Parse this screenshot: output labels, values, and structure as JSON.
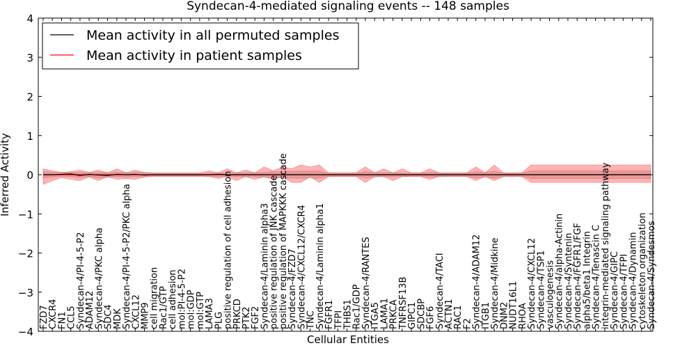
{
  "chart_data": {
    "type": "line",
    "title": "Syndecan-4-mediated signaling events -- 148 samples",
    "xlabel": "Cellular Entities",
    "ylabel": "Inferred Activity",
    "ylim": [
      -4,
      4
    ],
    "yticks": [
      "−4",
      "−3",
      "−2",
      "−1",
      "0",
      "1",
      "2",
      "3",
      "4"
    ],
    "legend_position": "top-left",
    "categories": [
      "FZD7",
      "CXCR4",
      "FN1",
      "CCL5",
      "Syndecan-4/PI-4-5-P2",
      "ADAM12",
      "Syndecan-4/PKC alpha",
      "SDC4",
      "MDK",
      "Syndecan-4/PI-4-5-P2/PKC alpha",
      "CXCL12",
      "MMP9",
      "cell migration",
      "Rac1/GTP",
      "cell adhesion",
      "mol:PI-4-5-P2",
      "mol:GDP",
      "mol:GTP",
      "LAMA3",
      "PLG",
      "positive regulation of cell adhesion",
      "PRKCD",
      "PTK2",
      "FGF2",
      "Syndecan-4/Laminin alpha3",
      "positive regulation of JNK cascade",
      "positive regulation of MAPKKK cascade",
      "Syndecan-4/FZD7",
      "Syndecan-4/CXCL12/CXCR4",
      "TNC",
      "Syndecan-4/Laminin alpha1",
      "FGFR1",
      "TFPI",
      "THBS1",
      "Rac1/GDP",
      "Syndecan-4/RANTES",
      "ITGA5",
      "LAMA1",
      "PRKCA",
      "TNFRSF13B",
      "GIPC1",
      "SDCBP",
      "FGF6",
      "Syndecan-4/TACI",
      "ACTN1",
      "RAC1",
      "F2",
      "Syndecan-4/ADAM12",
      "ITGB1",
      "Syndecan-4/Midkine",
      "DNM2",
      "NUDT16L1",
      "RHOA",
      "Syndecan-4/CXCL12",
      "Syndecan-4/TSP1",
      "vasculogenesis",
      "Syndecan-4/alpha-Actinin",
      "Syndecan-4/Syntenin",
      "Syndecan-4/FGFR1/FGF",
      "alpha5/beta1 Integrin",
      "Syndecan-4/Tenascin C",
      "integrin-mediated signaling pathway",
      "Syndecan-4/GIPC",
      "Syndecan-4/TFPI",
      "Syndecan-4/Dynamin",
      "cytoskeleton organization",
      "Syndecan-4/Syndesmos"
    ],
    "series": [
      {
        "name": "Mean activity in all permuted samples",
        "color": "#000000",
        "values": [
          0.0,
          0.0,
          0.01,
          0.02,
          -0.02,
          0.01,
          -0.01,
          -0.02,
          0.01,
          0.0,
          0.01,
          -0.01,
          0.0,
          0.0,
          0.0,
          0.0,
          0.0,
          0.0,
          0.0,
          0.01,
          0.0,
          0.0,
          0.0,
          0.0,
          0.0,
          0.0,
          0.0,
          0.0,
          0.0,
          0.0,
          0.0,
          0.0,
          0.0,
          0.0,
          0.0,
          0.0,
          0.0,
          0.0,
          0.0,
          0.0,
          0.0,
          0.0,
          0.0,
          0.0,
          0.0,
          0.0,
          0.0,
          0.0,
          0.0,
          0.0,
          0.0,
          0.0,
          0.0,
          0.0,
          0.0,
          0.0,
          0.0,
          0.0,
          0.0,
          0.0,
          0.0,
          0.0,
          0.0,
          0.0,
          0.0,
          0.0,
          0.0
        ],
        "lower": [
          -0.08,
          -0.06,
          -0.04,
          -0.05,
          -0.07,
          -0.05,
          -0.08,
          -0.07,
          -0.05,
          -0.06,
          -0.05,
          -0.06,
          -0.03,
          -0.03,
          -0.03,
          -0.03,
          -0.03,
          -0.03,
          -0.04,
          -0.05,
          -0.04,
          -0.05,
          -0.06,
          -0.05,
          -0.07,
          -0.08,
          -0.08,
          -0.09,
          -0.09,
          -0.09,
          -0.09,
          -0.04,
          -0.04,
          -0.04,
          -0.04,
          -0.08,
          -0.06,
          -0.05,
          -0.05,
          -0.05,
          -0.04,
          -0.04,
          -0.06,
          -0.05,
          -0.04,
          -0.04,
          -0.04,
          -0.08,
          -0.06,
          -0.09,
          -0.04,
          -0.04,
          -0.04,
          -0.1,
          -0.1,
          -0.1,
          -0.1,
          -0.1,
          -0.1,
          -0.1,
          -0.1,
          -0.1,
          -0.1,
          -0.1,
          -0.1,
          -0.1,
          -0.1
        ],
        "upper": [
          0.08,
          0.06,
          0.06,
          0.06,
          0.05,
          0.06,
          0.05,
          0.05,
          0.06,
          0.06,
          0.06,
          0.05,
          0.03,
          0.03,
          0.03,
          0.03,
          0.03,
          0.03,
          0.04,
          0.05,
          0.04,
          0.05,
          0.05,
          0.05,
          0.06,
          0.08,
          0.08,
          0.09,
          0.09,
          0.09,
          0.09,
          0.04,
          0.04,
          0.04,
          0.04,
          0.08,
          0.06,
          0.05,
          0.05,
          0.05,
          0.04,
          0.04,
          0.06,
          0.05,
          0.04,
          0.04,
          0.04,
          0.08,
          0.06,
          0.09,
          0.04,
          0.04,
          0.04,
          0.1,
          0.1,
          0.1,
          0.1,
          0.1,
          0.1,
          0.1,
          0.1,
          0.1,
          0.1,
          0.1,
          0.1,
          0.1,
          0.1
        ]
      },
      {
        "name": "Mean activity in patient samples",
        "color": "#ff0000",
        "values": [
          0.0,
          0.0,
          0.0,
          0.0,
          0.0,
          0.0,
          0.0,
          0.0,
          0.0,
          0.0,
          0.0,
          0.0,
          0.0,
          0.0,
          0.0,
          0.0,
          0.0,
          0.0,
          0.0,
          0.0,
          0.0,
          0.0,
          0.0,
          0.0,
          0.0,
          0.0,
          0.0,
          0.0,
          0.0,
          0.0,
          0.0,
          0.0,
          0.0,
          0.0,
          0.0,
          0.0,
          0.0,
          0.0,
          0.0,
          0.0,
          0.0,
          0.0,
          0.0,
          0.0,
          0.0,
          0.0,
          0.0,
          0.0,
          0.0,
          0.0,
          0.0,
          0.0,
          0.0,
          0.0,
          0.0,
          0.0,
          0.0,
          0.0,
          0.0,
          0.0,
          0.0,
          0.0,
          0.0,
          0.0,
          0.0,
          0.0,
          0.0
        ],
        "lower": [
          -0.25,
          -0.15,
          -0.08,
          -0.12,
          -0.15,
          -0.06,
          -0.15,
          -0.05,
          -0.12,
          -0.1,
          -0.12,
          -0.06,
          -0.05,
          -0.05,
          -0.05,
          -0.05,
          -0.05,
          -0.05,
          -0.05,
          -0.1,
          -0.05,
          -0.15,
          -0.05,
          -0.12,
          -0.05,
          -0.12,
          -0.05,
          -0.2,
          -0.2,
          -0.05,
          -0.2,
          -0.05,
          -0.05,
          -0.05,
          -0.05,
          -0.2,
          -0.05,
          -0.05,
          -0.15,
          -0.05,
          -0.05,
          -0.05,
          -0.12,
          -0.05,
          -0.05,
          -0.05,
          -0.05,
          -0.15,
          -0.05,
          -0.15,
          -0.05,
          -0.05,
          -0.05,
          -0.2,
          -0.2,
          -0.2,
          -0.2,
          -0.2,
          -0.2,
          -0.2,
          -0.2,
          -0.2,
          -0.2,
          -0.2,
          -0.2,
          -0.2,
          -0.2
        ],
        "upper": [
          0.15,
          0.1,
          0.06,
          0.08,
          0.12,
          0.06,
          0.12,
          0.05,
          0.15,
          0.05,
          0.12,
          0.06,
          0.05,
          0.05,
          0.05,
          0.05,
          0.05,
          0.05,
          0.1,
          0.05,
          0.15,
          0.05,
          0.12,
          0.05,
          0.2,
          0.1,
          0.2,
          0.15,
          0.25,
          0.2,
          0.25,
          0.05,
          0.05,
          0.05,
          0.05,
          0.2,
          0.05,
          0.15,
          0.05,
          0.15,
          0.05,
          0.05,
          0.15,
          0.05,
          0.05,
          0.05,
          0.05,
          0.2,
          0.05,
          0.25,
          0.05,
          0.05,
          0.05,
          0.25,
          0.25,
          0.25,
          0.25,
          0.25,
          0.25,
          0.25,
          0.25,
          0.25,
          0.25,
          0.25,
          0.25,
          0.25,
          0.25
        ]
      }
    ]
  }
}
